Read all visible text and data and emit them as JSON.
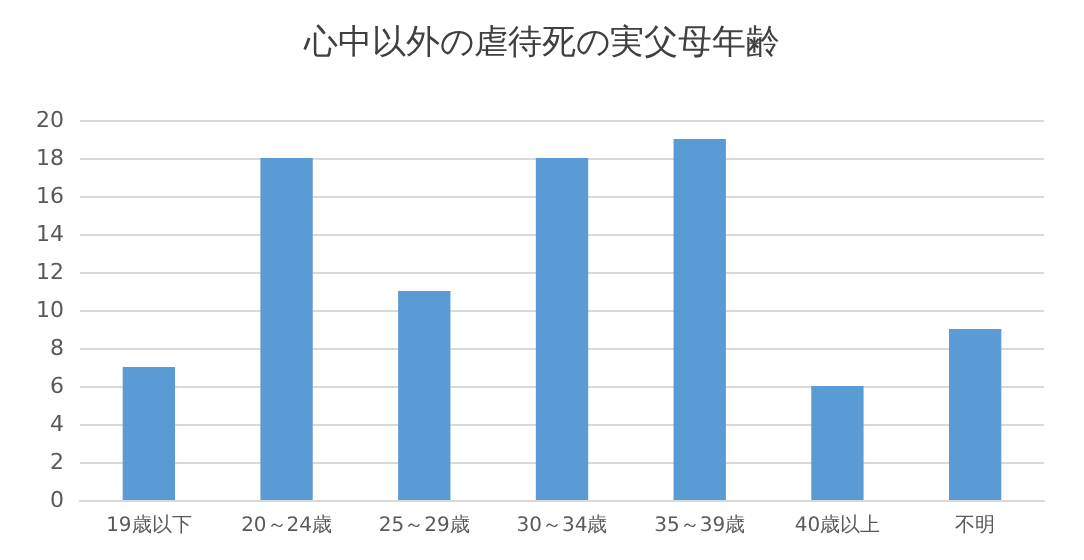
{
  "chart_data": {
    "type": "bar",
    "title": "心中以外の虐待死の実父母年齢",
    "categories": [
      "19歳以下",
      "20～24歳",
      "25～29歳",
      "30～34歳",
      "35～39歳",
      "40歳以上",
      "不明"
    ],
    "values": [
      7,
      18,
      11,
      18,
      19,
      6,
      9
    ],
    "color": "#5b9bd5",
    "ylim": [
      0,
      20
    ],
    "yticks": [
      0,
      2,
      4,
      6,
      8,
      10,
      12,
      14,
      16,
      18,
      20
    ],
    "grid": true
  }
}
